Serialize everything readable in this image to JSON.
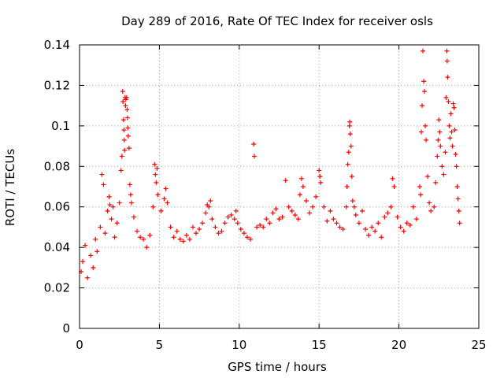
{
  "chart_data": {
    "type": "scatter",
    "title": "Day 289 of 2016, Rate Of TEC Index for receiver osls",
    "xlabel": "GPS time / hours",
    "ylabel": "ROTI / TECUs",
    "xlim": [
      0,
      25
    ],
    "ylim": [
      0,
      0.14
    ],
    "xticks": [
      0,
      5,
      10,
      15,
      20,
      25
    ],
    "xtick_labels": [
      "0",
      "5",
      "10",
      "15",
      "20",
      "25"
    ],
    "yticks": [
      0,
      0.02,
      0.04,
      0.06,
      0.08,
      0.1,
      0.12,
      0.14
    ],
    "ytick_labels": [
      "0",
      "0.02",
      "0.04",
      "0.06",
      "0.08",
      "0.1",
      "0.12",
      "0.14"
    ],
    "grid": true,
    "marker": "+",
    "color": "#ff0000",
    "series": [
      {
        "name": "ROTI",
        "points": [
          [
            0.1,
            0.028
          ],
          [
            0.2,
            0.033
          ],
          [
            0.35,
            0.041
          ],
          [
            0.5,
            0.025
          ],
          [
            0.7,
            0.036
          ],
          [
            0.85,
            0.03
          ],
          [
            1.0,
            0.044
          ],
          [
            1.1,
            0.038
          ],
          [
            1.3,
            0.05
          ],
          [
            1.4,
            0.076
          ],
          [
            1.5,
            0.071
          ],
          [
            1.6,
            0.047
          ],
          [
            1.75,
            0.058
          ],
          [
            1.85,
            0.065
          ],
          [
            1.9,
            0.061
          ],
          [
            2.0,
            0.054
          ],
          [
            2.1,
            0.06
          ],
          [
            2.2,
            0.045
          ],
          [
            2.35,
            0.052
          ],
          [
            2.5,
            0.062
          ],
          [
            2.6,
            0.078
          ],
          [
            2.65,
            0.085
          ],
          [
            2.7,
            0.117
          ],
          [
            2.72,
            0.112
          ],
          [
            2.75,
            0.103
          ],
          [
            2.78,
            0.098
          ],
          [
            2.8,
            0.093
          ],
          [
            2.82,
            0.088
          ],
          [
            2.85,
            0.114
          ],
          [
            2.88,
            0.11
          ],
          [
            2.9,
            0.113
          ],
          [
            2.95,
            0.114
          ],
          [
            2.98,
            0.108
          ],
          [
            3.0,
            0.104
          ],
          [
            3.02,
            0.099
          ],
          [
            3.05,
            0.095
          ],
          [
            3.1,
            0.089
          ],
          [
            3.15,
            0.071
          ],
          [
            3.2,
            0.066
          ],
          [
            3.25,
            0.062
          ],
          [
            3.4,
            0.055
          ],
          [
            3.6,
            0.048
          ],
          [
            3.8,
            0.045
          ],
          [
            4.0,
            0.044
          ],
          [
            4.2,
            0.04
          ],
          [
            4.4,
            0.046
          ],
          [
            4.6,
            0.06
          ],
          [
            4.7,
            0.081
          ],
          [
            4.75,
            0.076
          ],
          [
            4.8,
            0.072
          ],
          [
            4.85,
            0.079
          ],
          [
            4.9,
            0.066
          ],
          [
            5.1,
            0.058
          ],
          [
            5.3,
            0.064
          ],
          [
            5.4,
            0.069
          ],
          [
            5.5,
            0.062
          ],
          [
            5.7,
            0.05
          ],
          [
            5.9,
            0.045
          ],
          [
            6.1,
            0.048
          ],
          [
            6.3,
            0.044
          ],
          [
            6.5,
            0.043
          ],
          [
            6.7,
            0.046
          ],
          [
            6.9,
            0.044
          ],
          [
            7.1,
            0.05
          ],
          [
            7.3,
            0.047
          ],
          [
            7.5,
            0.049
          ],
          [
            7.7,
            0.052
          ],
          [
            7.9,
            0.057
          ],
          [
            8.0,
            0.061
          ],
          [
            8.1,
            0.06
          ],
          [
            8.2,
            0.063
          ],
          [
            8.3,
            0.054
          ],
          [
            8.5,
            0.05
          ],
          [
            8.7,
            0.047
          ],
          [
            8.9,
            0.048
          ],
          [
            9.1,
            0.052
          ],
          [
            9.3,
            0.055
          ],
          [
            9.5,
            0.056
          ],
          [
            9.7,
            0.054
          ],
          [
            9.8,
            0.058
          ],
          [
            9.9,
            0.052
          ],
          [
            10.1,
            0.049
          ],
          [
            10.3,
            0.047
          ],
          [
            10.5,
            0.045
          ],
          [
            10.7,
            0.044
          ],
          [
            10.9,
            0.091
          ],
          [
            10.95,
            0.085
          ],
          [
            11.1,
            0.05
          ],
          [
            11.3,
            0.051
          ],
          [
            11.5,
            0.05
          ],
          [
            11.7,
            0.054
          ],
          [
            11.9,
            0.052
          ],
          [
            12.1,
            0.057
          ],
          [
            12.3,
            0.059
          ],
          [
            12.5,
            0.054
          ],
          [
            12.7,
            0.055
          ],
          [
            12.9,
            0.073
          ],
          [
            13.1,
            0.06
          ],
          [
            13.3,
            0.058
          ],
          [
            13.5,
            0.056
          ],
          [
            13.7,
            0.054
          ],
          [
            13.8,
            0.066
          ],
          [
            13.9,
            0.074
          ],
          [
            14.0,
            0.07
          ],
          [
            14.2,
            0.063
          ],
          [
            14.4,
            0.057
          ],
          [
            14.6,
            0.06
          ],
          [
            14.8,
            0.065
          ],
          [
            15.0,
            0.078
          ],
          [
            15.05,
            0.075
          ],
          [
            15.1,
            0.072
          ],
          [
            15.3,
            0.06
          ],
          [
            15.5,
            0.053
          ],
          [
            15.7,
            0.058
          ],
          [
            15.9,
            0.054
          ],
          [
            16.1,
            0.052
          ],
          [
            16.3,
            0.05
          ],
          [
            16.5,
            0.049
          ],
          [
            16.7,
            0.06
          ],
          [
            16.75,
            0.07
          ],
          [
            16.8,
            0.081
          ],
          [
            16.85,
            0.087
          ],
          [
            16.9,
            0.1
          ],
          [
            16.92,
            0.102
          ],
          [
            16.95,
            0.096
          ],
          [
            17.0,
            0.09
          ],
          [
            17.05,
            0.075
          ],
          [
            17.1,
            0.063
          ],
          [
            17.2,
            0.06
          ],
          [
            17.3,
            0.056
          ],
          [
            17.5,
            0.052
          ],
          [
            17.7,
            0.058
          ],
          [
            17.9,
            0.049
          ],
          [
            18.1,
            0.046
          ],
          [
            18.3,
            0.05
          ],
          [
            18.5,
            0.048
          ],
          [
            18.7,
            0.052
          ],
          [
            18.9,
            0.045
          ],
          [
            19.1,
            0.055
          ],
          [
            19.3,
            0.057
          ],
          [
            19.5,
            0.06
          ],
          [
            19.6,
            0.074
          ],
          [
            19.7,
            0.07
          ],
          [
            19.9,
            0.055
          ],
          [
            20.1,
            0.05
          ],
          [
            20.3,
            0.048
          ],
          [
            20.5,
            0.052
          ],
          [
            20.7,
            0.051
          ],
          [
            20.9,
            0.06
          ],
          [
            21.1,
            0.054
          ],
          [
            21.3,
            0.07
          ],
          [
            21.35,
            0.066
          ],
          [
            21.4,
            0.097
          ],
          [
            21.45,
            0.11
          ],
          [
            21.5,
            0.137
          ],
          [
            21.55,
            0.122
          ],
          [
            21.6,
            0.117
          ],
          [
            21.65,
            0.1
          ],
          [
            21.7,
            0.093
          ],
          [
            21.8,
            0.075
          ],
          [
            21.9,
            0.062
          ],
          [
            22.0,
            0.058
          ],
          [
            22.2,
            0.06
          ],
          [
            22.3,
            0.072
          ],
          [
            22.4,
            0.085
          ],
          [
            22.45,
            0.093
          ],
          [
            22.5,
            0.103
          ],
          [
            22.55,
            0.097
          ],
          [
            22.6,
            0.09
          ],
          [
            22.7,
            0.08
          ],
          [
            22.8,
            0.076
          ],
          [
            22.9,
            0.087
          ],
          [
            22.95,
            0.114
          ],
          [
            23.0,
            0.137
          ],
          [
            23.02,
            0.132
          ],
          [
            23.05,
            0.124
          ],
          [
            23.1,
            0.112
          ],
          [
            23.15,
            0.1
          ],
          [
            23.2,
            0.094
          ],
          [
            23.25,
            0.106
          ],
          [
            23.3,
            0.097
          ],
          [
            23.35,
            0.09
          ],
          [
            23.4,
            0.111
          ],
          [
            23.45,
            0.109
          ],
          [
            23.5,
            0.098
          ],
          [
            23.55,
            0.086
          ],
          [
            23.6,
            0.08
          ],
          [
            23.65,
            0.07
          ],
          [
            23.7,
            0.064
          ],
          [
            23.75,
            0.058
          ],
          [
            23.8,
            0.052
          ]
        ]
      }
    ]
  }
}
